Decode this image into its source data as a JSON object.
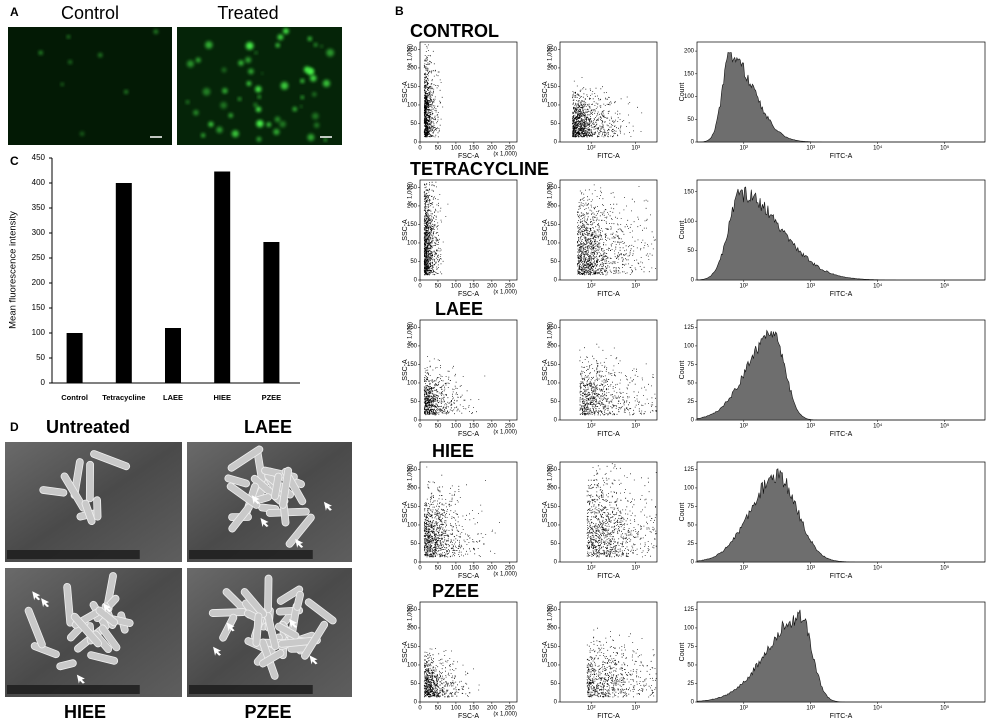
{
  "panel_a": {
    "label": "A",
    "images": [
      {
        "caption": "Control"
      },
      {
        "caption": "Treated"
      }
    ]
  },
  "chart_data": {
    "type": "bar",
    "panel_label": "C",
    "y_label": "Mean fluorescence intensity",
    "categories": [
      "Control",
      "Tetracycline",
      "LAEE",
      "HIEE",
      "PZEE"
    ],
    "values": [
      100,
      400,
      110,
      423,
      282
    ],
    "color": "#000000",
    "ylim": [
      0,
      450
    ],
    "yticks": [
      0,
      50,
      100,
      150,
      200,
      250,
      300,
      350,
      400,
      450
    ],
    "grid": false
  },
  "panel_d": {
    "label": "D",
    "images": [
      {
        "caption": "Untreated"
      },
      {
        "caption": "LAEE"
      },
      {
        "caption": "HIEE"
      },
      {
        "caption": "PZEE"
      }
    ]
  },
  "panel_b": {
    "label": "B",
    "scatter_fsc": {
      "xlabel": "FSC-A",
      "ylabel": "SSC-A",
      "x_unit": "(x 1,000)",
      "y_unit": "(x 1,000)",
      "xlim": [
        0,
        270
      ],
      "ylim": [
        0,
        270
      ],
      "xticks": [
        0,
        50,
        100,
        150,
        200,
        250
      ],
      "yticks": [
        0,
        50,
        100,
        150,
        200,
        250
      ]
    },
    "scatter_fitc": {
      "xlabel": "FITC-A",
      "ylabel": "SSC-A",
      "y_unit": "(x 1,000)",
      "xscale": "log",
      "xlim": [
        20,
        3000
      ],
      "ylim": [
        0,
        270
      ],
      "xticks": [
        {
          "value": 100,
          "label": "10²"
        },
        {
          "value": 1000,
          "label": "10³"
        }
      ],
      "yticks": [
        0,
        50,
        100,
        150,
        200,
        250
      ]
    },
    "histogram": {
      "xlabel": "FITC-A",
      "ylabel": "Count",
      "xscale": "log",
      "xlim": [
        20,
        400000
      ],
      "xticks": [
        {
          "value": 100,
          "label": "10²"
        },
        {
          "value": 1000,
          "label": "10³"
        },
        {
          "value": 10000,
          "label": "10⁴"
        },
        {
          "value": 100000,
          "label": "10⁵"
        }
      ]
    },
    "rows": [
      {
        "title": "CONTROL",
        "hist_ylim": [
          0,
          220
        ],
        "hist_yticks": [
          0,
          50,
          100,
          150,
          200
        ]
      },
      {
        "title": "TETRACYCLINE",
        "hist_ylim": [
          0,
          170
        ],
        "hist_yticks": [
          0,
          50,
          100,
          150
        ]
      },
      {
        "title": "LAEE",
        "hist_ylim": [
          0,
          135
        ],
        "hist_yticks": [
          0,
          25,
          50,
          75,
          100,
          125
        ]
      },
      {
        "title": "HIEE",
        "hist_ylim": [
          0,
          135
        ],
        "hist_yticks": [
          0,
          25,
          50,
          75,
          100,
          125
        ]
      },
      {
        "title": "PZEE",
        "hist_ylim": [
          0,
          135
        ],
        "hist_yticks": [
          0,
          25,
          50,
          75,
          100,
          125
        ]
      }
    ]
  }
}
